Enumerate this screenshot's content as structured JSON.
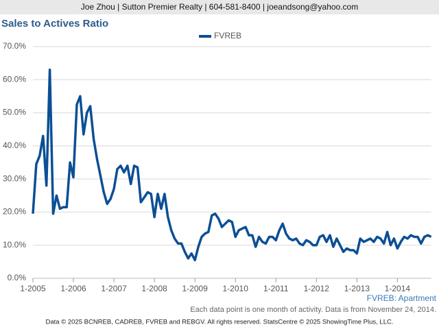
{
  "header": "Joe Zhou | Sutton Premier Realty | 604-581-8400 | joeandsong@yahoo.com",
  "chart_data": {
    "type": "line",
    "title": "Sales to Actives Ratio",
    "categories": [
      "1-2005",
      null,
      null,
      null,
      null,
      null,
      null,
      null,
      null,
      null,
      null,
      null,
      "1-2006",
      null,
      null,
      null,
      null,
      null,
      null,
      null,
      null,
      null,
      null,
      null,
      "1-2007",
      null,
      null,
      null,
      null,
      null,
      null,
      null,
      null,
      null,
      null,
      null,
      "1-2008",
      null,
      null,
      null,
      null,
      null,
      null,
      null,
      null,
      null,
      null,
      null,
      "1-2009",
      null,
      null,
      null,
      null,
      null,
      null,
      null,
      null,
      null,
      null,
      null,
      "1-2010",
      null,
      null,
      null,
      null,
      null,
      null,
      null,
      null,
      null,
      null,
      null,
      "1-2011",
      null,
      null,
      null,
      null,
      null,
      null,
      null,
      null,
      null,
      null,
      null,
      "1-2012",
      null,
      null,
      null,
      null,
      null,
      null,
      null,
      null,
      null,
      null,
      null,
      "1-2013",
      null,
      null,
      null,
      null,
      null,
      null,
      null,
      null,
      null,
      null,
      null,
      "1-2014",
      null,
      null,
      null,
      null,
      null,
      null,
      null,
      null,
      null,
      null
    ],
    "series": [
      {
        "name": "FVREB",
        "color": "#0b4f95",
        "values": [
          19.5,
          34.5,
          37,
          43,
          28,
          63,
          19.5,
          25,
          21,
          21.5,
          21.5,
          35,
          30.5,
          52.5,
          55,
          43.5,
          50,
          52,
          42,
          36,
          31,
          26,
          22.5,
          24,
          27,
          33,
          34,
          32,
          34,
          28.5,
          34,
          33.5,
          23,
          24.5,
          26,
          25.5,
          18.5,
          25.5,
          21,
          25.5,
          18.5,
          14.5,
          12,
          10.5,
          10.5,
          8,
          6,
          7.5,
          5.5,
          9.5,
          12.5,
          13.5,
          14,
          19,
          19.5,
          18,
          15.5,
          16.5,
          17.5,
          17,
          12.5,
          14.5,
          15,
          15.5,
          13,
          13,
          9.5,
          12.5,
          11,
          10.5,
          12.5,
          12.5,
          11.5,
          14.5,
          16.5,
          13.5,
          12,
          11.5,
          12,
          10.5,
          10,
          11.5,
          11,
          10,
          10,
          12.5,
          13,
          11,
          13,
          9.5,
          12,
          10,
          8,
          9,
          8.5,
          8.5,
          7.5,
          12,
          11,
          11.5,
          12,
          11,
          12.5,
          12,
          10.5,
          14,
          10,
          12,
          9,
          11,
          12.5,
          12,
          13,
          12.5,
          12.5,
          10.5,
          12.5,
          13,
          12.5
        ]
      }
    ],
    "ylim": [
      0,
      70
    ],
    "yticks": [
      {
        "value": 0,
        "label": "0.0%"
      },
      {
        "value": 10,
        "label": "10.0%"
      },
      {
        "value": 20,
        "label": "20.0%"
      },
      {
        "value": 30,
        "label": "30.0%"
      },
      {
        "value": 40,
        "label": "40.0%"
      },
      {
        "value": 50,
        "label": "50.0%"
      },
      {
        "value": 60,
        "label": "60.0%"
      },
      {
        "value": 70,
        "label": "70.0%"
      }
    ],
    "grid": true,
    "legend": "top",
    "annotation": "FVREB: Apartment",
    "note": "Each data point is one month of activity. Data is from November 24, 2014."
  },
  "footer": "Data © 2025 BCNREB, CADREB, FVREB and REBGV. All rights reserved. StatsCentre © 2025 ShowingTime Plus, LLC."
}
